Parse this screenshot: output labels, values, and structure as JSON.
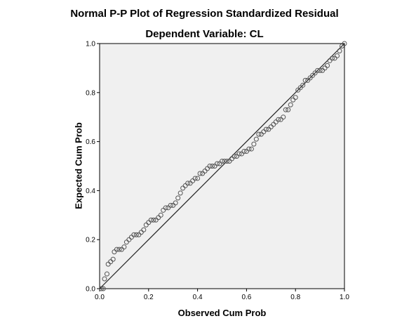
{
  "chart_data": {
    "type": "scatter",
    "title": "Normal P-P Plot of Regression Standardized Residual",
    "subtitle": "Dependent Variable: CL",
    "xlabel": "Observed Cum Prob",
    "ylabel": "Expected Cum Prob",
    "xlim": [
      0,
      1
    ],
    "ylim": [
      0,
      1
    ],
    "xticks": [
      "0.0",
      "0.2",
      "0.4",
      "0.6",
      "0.8",
      "1.0"
    ],
    "yticks": [
      "0.0",
      "0.2",
      "0.4",
      "0.6",
      "0.8",
      "1.0"
    ],
    "reference_line": [
      [
        0,
        0
      ],
      [
        1,
        1
      ]
    ],
    "grid": false,
    "colors": {
      "plot_bg": "#f0f0f0",
      "marker": "#555555",
      "line": "#222222"
    },
    "points": [
      [
        0.007,
        0.0
      ],
      [
        0.015,
        0.0
      ],
      [
        0.02,
        0.04
      ],
      [
        0.03,
        0.06
      ],
      [
        0.035,
        0.1
      ],
      [
        0.045,
        0.11
      ],
      [
        0.055,
        0.12
      ],
      [
        0.06,
        0.15
      ],
      [
        0.07,
        0.16
      ],
      [
        0.08,
        0.16
      ],
      [
        0.09,
        0.16
      ],
      [
        0.1,
        0.17
      ],
      [
        0.11,
        0.19
      ],
      [
        0.12,
        0.2
      ],
      [
        0.13,
        0.21
      ],
      [
        0.14,
        0.22
      ],
      [
        0.15,
        0.22
      ],
      [
        0.16,
        0.22
      ],
      [
        0.17,
        0.23
      ],
      [
        0.18,
        0.24
      ],
      [
        0.19,
        0.26
      ],
      [
        0.2,
        0.27
      ],
      [
        0.21,
        0.28
      ],
      [
        0.22,
        0.28
      ],
      [
        0.23,
        0.28
      ],
      [
        0.24,
        0.29
      ],
      [
        0.25,
        0.3
      ],
      [
        0.26,
        0.32
      ],
      [
        0.27,
        0.33
      ],
      [
        0.28,
        0.33
      ],
      [
        0.29,
        0.34
      ],
      [
        0.3,
        0.34
      ],
      [
        0.31,
        0.35
      ],
      [
        0.32,
        0.37
      ],
      [
        0.33,
        0.39
      ],
      [
        0.34,
        0.41
      ],
      [
        0.35,
        0.42
      ],
      [
        0.36,
        0.43
      ],
      [
        0.37,
        0.43
      ],
      [
        0.38,
        0.44
      ],
      [
        0.39,
        0.45
      ],
      [
        0.4,
        0.45
      ],
      [
        0.41,
        0.47
      ],
      [
        0.42,
        0.47
      ],
      [
        0.43,
        0.48
      ],
      [
        0.44,
        0.49
      ],
      [
        0.45,
        0.5
      ],
      [
        0.46,
        0.5
      ],
      [
        0.47,
        0.5
      ],
      [
        0.48,
        0.51
      ],
      [
        0.49,
        0.51
      ],
      [
        0.5,
        0.52
      ],
      [
        0.51,
        0.52
      ],
      [
        0.52,
        0.52
      ],
      [
        0.53,
        0.52
      ],
      [
        0.54,
        0.53
      ],
      [
        0.55,
        0.54
      ],
      [
        0.56,
        0.54
      ],
      [
        0.57,
        0.55
      ],
      [
        0.58,
        0.55
      ],
      [
        0.59,
        0.56
      ],
      [
        0.6,
        0.56
      ],
      [
        0.61,
        0.57
      ],
      [
        0.62,
        0.57
      ],
      [
        0.63,
        0.59
      ],
      [
        0.64,
        0.61
      ],
      [
        0.65,
        0.63
      ],
      [
        0.66,
        0.63
      ],
      [
        0.67,
        0.64
      ],
      [
        0.68,
        0.65
      ],
      [
        0.69,
        0.65
      ],
      [
        0.7,
        0.66
      ],
      [
        0.71,
        0.67
      ],
      [
        0.72,
        0.68
      ],
      [
        0.73,
        0.69
      ],
      [
        0.74,
        0.69
      ],
      [
        0.75,
        0.7
      ],
      [
        0.76,
        0.73
      ],
      [
        0.77,
        0.73
      ],
      [
        0.78,
        0.75
      ],
      [
        0.79,
        0.77
      ],
      [
        0.8,
        0.78
      ],
      [
        0.81,
        0.81
      ],
      [
        0.82,
        0.82
      ],
      [
        0.83,
        0.83
      ],
      [
        0.84,
        0.85
      ],
      [
        0.85,
        0.85
      ],
      [
        0.86,
        0.86
      ],
      [
        0.87,
        0.87
      ],
      [
        0.88,
        0.88
      ],
      [
        0.89,
        0.89
      ],
      [
        0.9,
        0.89
      ],
      [
        0.91,
        0.89
      ],
      [
        0.92,
        0.9
      ],
      [
        0.93,
        0.91
      ],
      [
        0.94,
        0.93
      ],
      [
        0.95,
        0.94
      ],
      [
        0.96,
        0.94
      ],
      [
        0.97,
        0.95
      ],
      [
        0.98,
        0.97
      ],
      [
        0.99,
        0.99
      ],
      [
        1.0,
        1.0
      ]
    ]
  }
}
